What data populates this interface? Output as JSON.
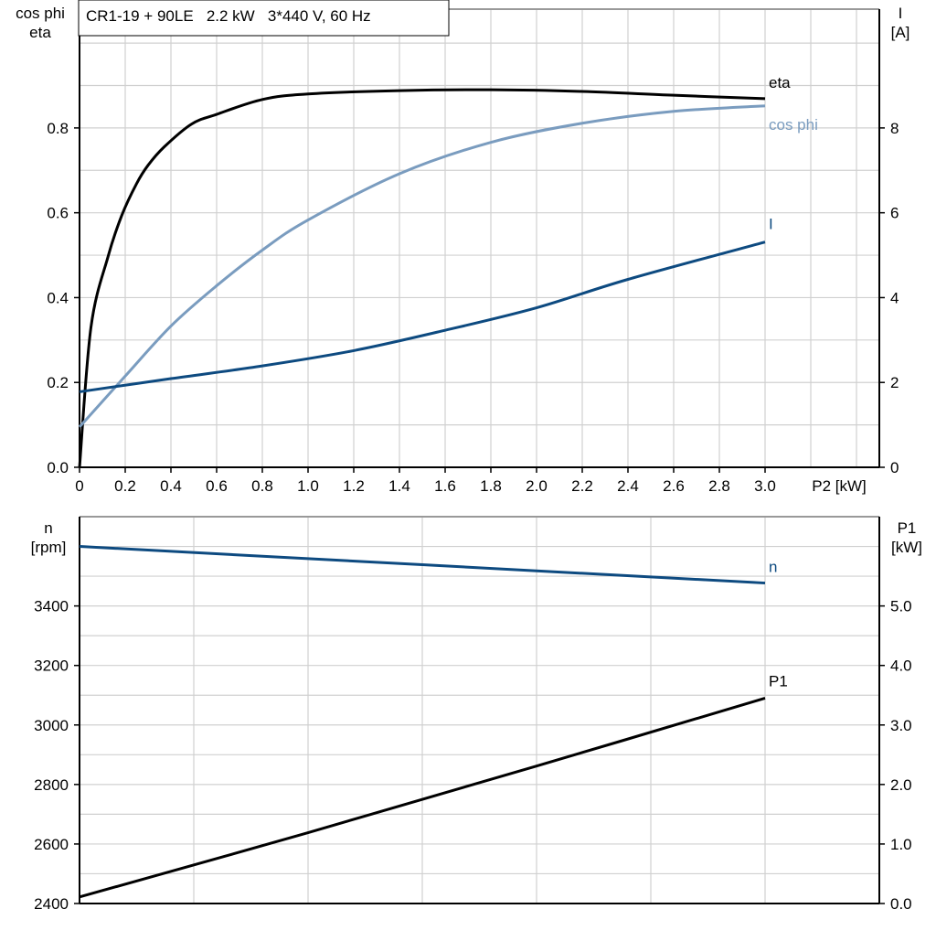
{
  "chart_data": [
    {
      "type": "line",
      "title": "CR1-19 + 90LE   2.2 kW   3*440 V, 60 Hz",
      "xlabel": "P2 [kW]",
      "ylabel_left": [
        "cos phi",
        "eta"
      ],
      "ylabel_right": [
        "I",
        "[A]"
      ],
      "xlim": [
        0,
        3.5
      ],
      "ylim_left": [
        0,
        1.08
      ],
      "ylim_right": [
        0,
        10.8
      ],
      "x_ticks": [
        "0",
        "0.2",
        "0.4",
        "0.6",
        "0.8",
        "1.0",
        "1.2",
        "1.4",
        "1.6",
        "1.8",
        "2.0",
        "2.2",
        "2.4",
        "2.6",
        "2.8",
        "3.0"
      ],
      "y_ticks_left": [
        "0.0",
        "0.2",
        "0.4",
        "0.6",
        "0.8"
      ],
      "y_ticks_right": [
        "0",
        "2",
        "4",
        "6",
        "8"
      ],
      "grid": true,
      "series": [
        {
          "name": "eta",
          "axis": "left",
          "color": "#000000",
          "x": [
            0,
            0.05,
            0.125,
            0.185,
            0.25,
            0.3,
            0.37,
            0.49,
            0.6,
            0.8,
            1.0,
            1.4,
            1.8,
            2.2,
            2.6,
            3.0
          ],
          "y": [
            0,
            0.33,
            0.497,
            0.594,
            0.669,
            0.712,
            0.755,
            0.809,
            0.832,
            0.867,
            0.88,
            0.888,
            0.89,
            0.886,
            0.877,
            0.869
          ]
        },
        {
          "name": "cos phi",
          "axis": "left",
          "color": "#7a9cbf",
          "x": [
            0,
            0.2,
            0.4,
            0.6,
            0.8,
            1.0,
            1.4,
            1.8,
            2.2,
            2.6,
            3.0
          ],
          "y": [
            0.095,
            0.215,
            0.333,
            0.428,
            0.512,
            0.583,
            0.692,
            0.766,
            0.811,
            0.839,
            0.852
          ]
        },
        {
          "name": "I",
          "axis": "right",
          "color": "#0d4a80",
          "x": [
            0,
            0.4,
            0.8,
            1.2,
            1.6,
            2.0,
            2.4,
            3.0
          ],
          "y": [
            1.78,
            2.09,
            2.39,
            2.75,
            3.23,
            3.76,
            4.43,
            5.31
          ]
        }
      ]
    },
    {
      "type": "line",
      "xlim": [
        0,
        3.5
      ],
      "ylabel_left": [
        "n",
        "[rpm]"
      ],
      "ylabel_right": [
        "P1",
        "[kW]"
      ],
      "ylim_left": [
        2400,
        3700
      ],
      "ylim_right": [
        0,
        6.5
      ],
      "y_ticks_left": [
        "2400",
        "2600",
        "2800",
        "3000",
        "3200",
        "3400"
      ],
      "y_ticks_right": [
        "0.0",
        "1.0",
        "2.0",
        "3.0",
        "4.0",
        "5.0"
      ],
      "grid": true,
      "series": [
        {
          "name": "n",
          "axis": "left",
          "color": "#0d4a80",
          "x": [
            0,
            3.0
          ],
          "y": [
            3600,
            3477
          ]
        },
        {
          "name": "P1",
          "axis": "right",
          "color": "#000000",
          "x": [
            0,
            1.0,
            2.0,
            3.0
          ],
          "y": [
            0.11,
            1.19,
            2.31,
            3.45
          ]
        }
      ]
    }
  ]
}
